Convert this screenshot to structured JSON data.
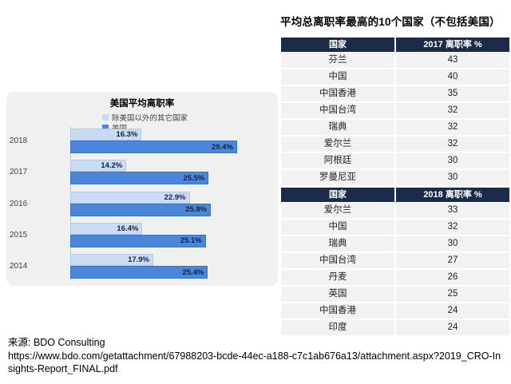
{
  "chart_data": [
    {
      "type": "bar",
      "orientation": "horizontal",
      "title": "美国平均离职率",
      "categories": [
        "2018",
        "2017",
        "2016",
        "2015",
        "2014"
      ],
      "series": [
        {
          "name": "除美国以外的其它国家",
          "color": "#c9dcf3",
          "values": [
            16.3,
            14.2,
            22.9,
            16.4,
            17.9
          ]
        },
        {
          "name": "美国",
          "color": "#4a86d9",
          "values": [
            29.4,
            25.5,
            25.8,
            25.1,
            25.4
          ]
        }
      ],
      "value_suffix": "%",
      "xlim": [
        6.5,
        35
      ],
      "grid": false,
      "legend_position": "top-left"
    },
    {
      "type": "table",
      "title": "平均总离职率最高的10个国家（不包括美国）",
      "columns": [
        "国家",
        "2017 离职率 %"
      ],
      "rows": [
        [
          "芬兰",
          "43"
        ],
        [
          "中国",
          "40"
        ],
        [
          "中国香港",
          "35"
        ],
        [
          "中国台湾",
          "32"
        ],
        [
          "瑞典",
          "32"
        ],
        [
          "爱尔兰",
          "32"
        ],
        [
          "阿根廷",
          "30"
        ],
        [
          "罗曼尼亚",
          "30"
        ]
      ]
    },
    {
      "type": "table",
      "columns": [
        "国家",
        "2018 离职率 %"
      ],
      "rows": [
        [
          "爱尔兰",
          "33"
        ],
        [
          "中国",
          "32"
        ],
        [
          "瑞典",
          "30"
        ],
        [
          "中国台湾",
          "27"
        ],
        [
          "丹麦",
          "26"
        ],
        [
          "英国",
          "25"
        ],
        [
          "中国香港",
          "24"
        ],
        [
          "印度",
          "24"
        ]
      ]
    }
  ],
  "footer": {
    "source": "来源: BDO Consulting",
    "url": "https://www.bdo.com/getattachment/67988203-bcde-44ec-a188-c7c1ab676a13/attachment.aspx?2019_CRO-Insights-Report_FINAL.pdf"
  },
  "colors": {
    "table_header_navy": "#1c2b4a",
    "table_row_gray": "#f2f2f2",
    "bar_other_light_blue": "#c9dcf3",
    "bar_us_blue": "#4a86d9",
    "chart_panel_gray": "#f0f0f0"
  }
}
